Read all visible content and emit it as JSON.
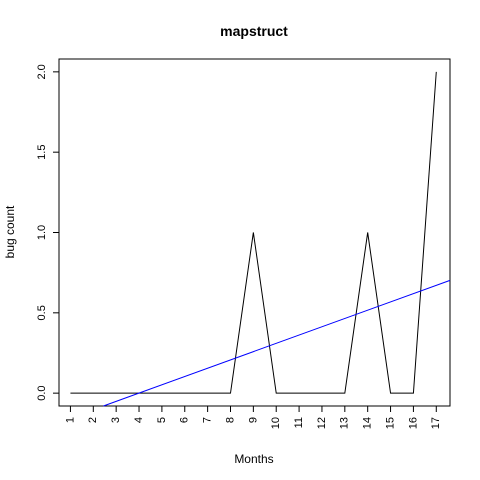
{
  "chart_data": {
    "type": "line",
    "title": "mapstruct",
    "xlabel": "Months",
    "ylabel": "bug count",
    "x": [
      1,
      2,
      3,
      4,
      5,
      6,
      7,
      8,
      9,
      10,
      11,
      12,
      13,
      14,
      15,
      16,
      17
    ],
    "series": [
      {
        "values": [
          0,
          0,
          0,
          0,
          0,
          0,
          0,
          0,
          1,
          0,
          0,
          0,
          0,
          1,
          0,
          0,
          2
        ],
        "color": "#000000"
      }
    ],
    "trendline": {
      "slope": 0.0516,
      "intercept": -0.206,
      "color": "#0000ff"
    },
    "xlim": [
      0.5,
      17.6
    ],
    "ylim": [
      -0.08,
      2.08
    ],
    "x_ticks": [
      "1",
      "2",
      "3",
      "4",
      "5",
      "6",
      "7",
      "8",
      "9",
      "10",
      "11",
      "12",
      "13",
      "14",
      "15",
      "16",
      "17"
    ],
    "y_ticks": [
      "0.0",
      "0.5",
      "1.0",
      "1.5",
      "2.0"
    ],
    "grid": false,
    "legend": "none"
  }
}
